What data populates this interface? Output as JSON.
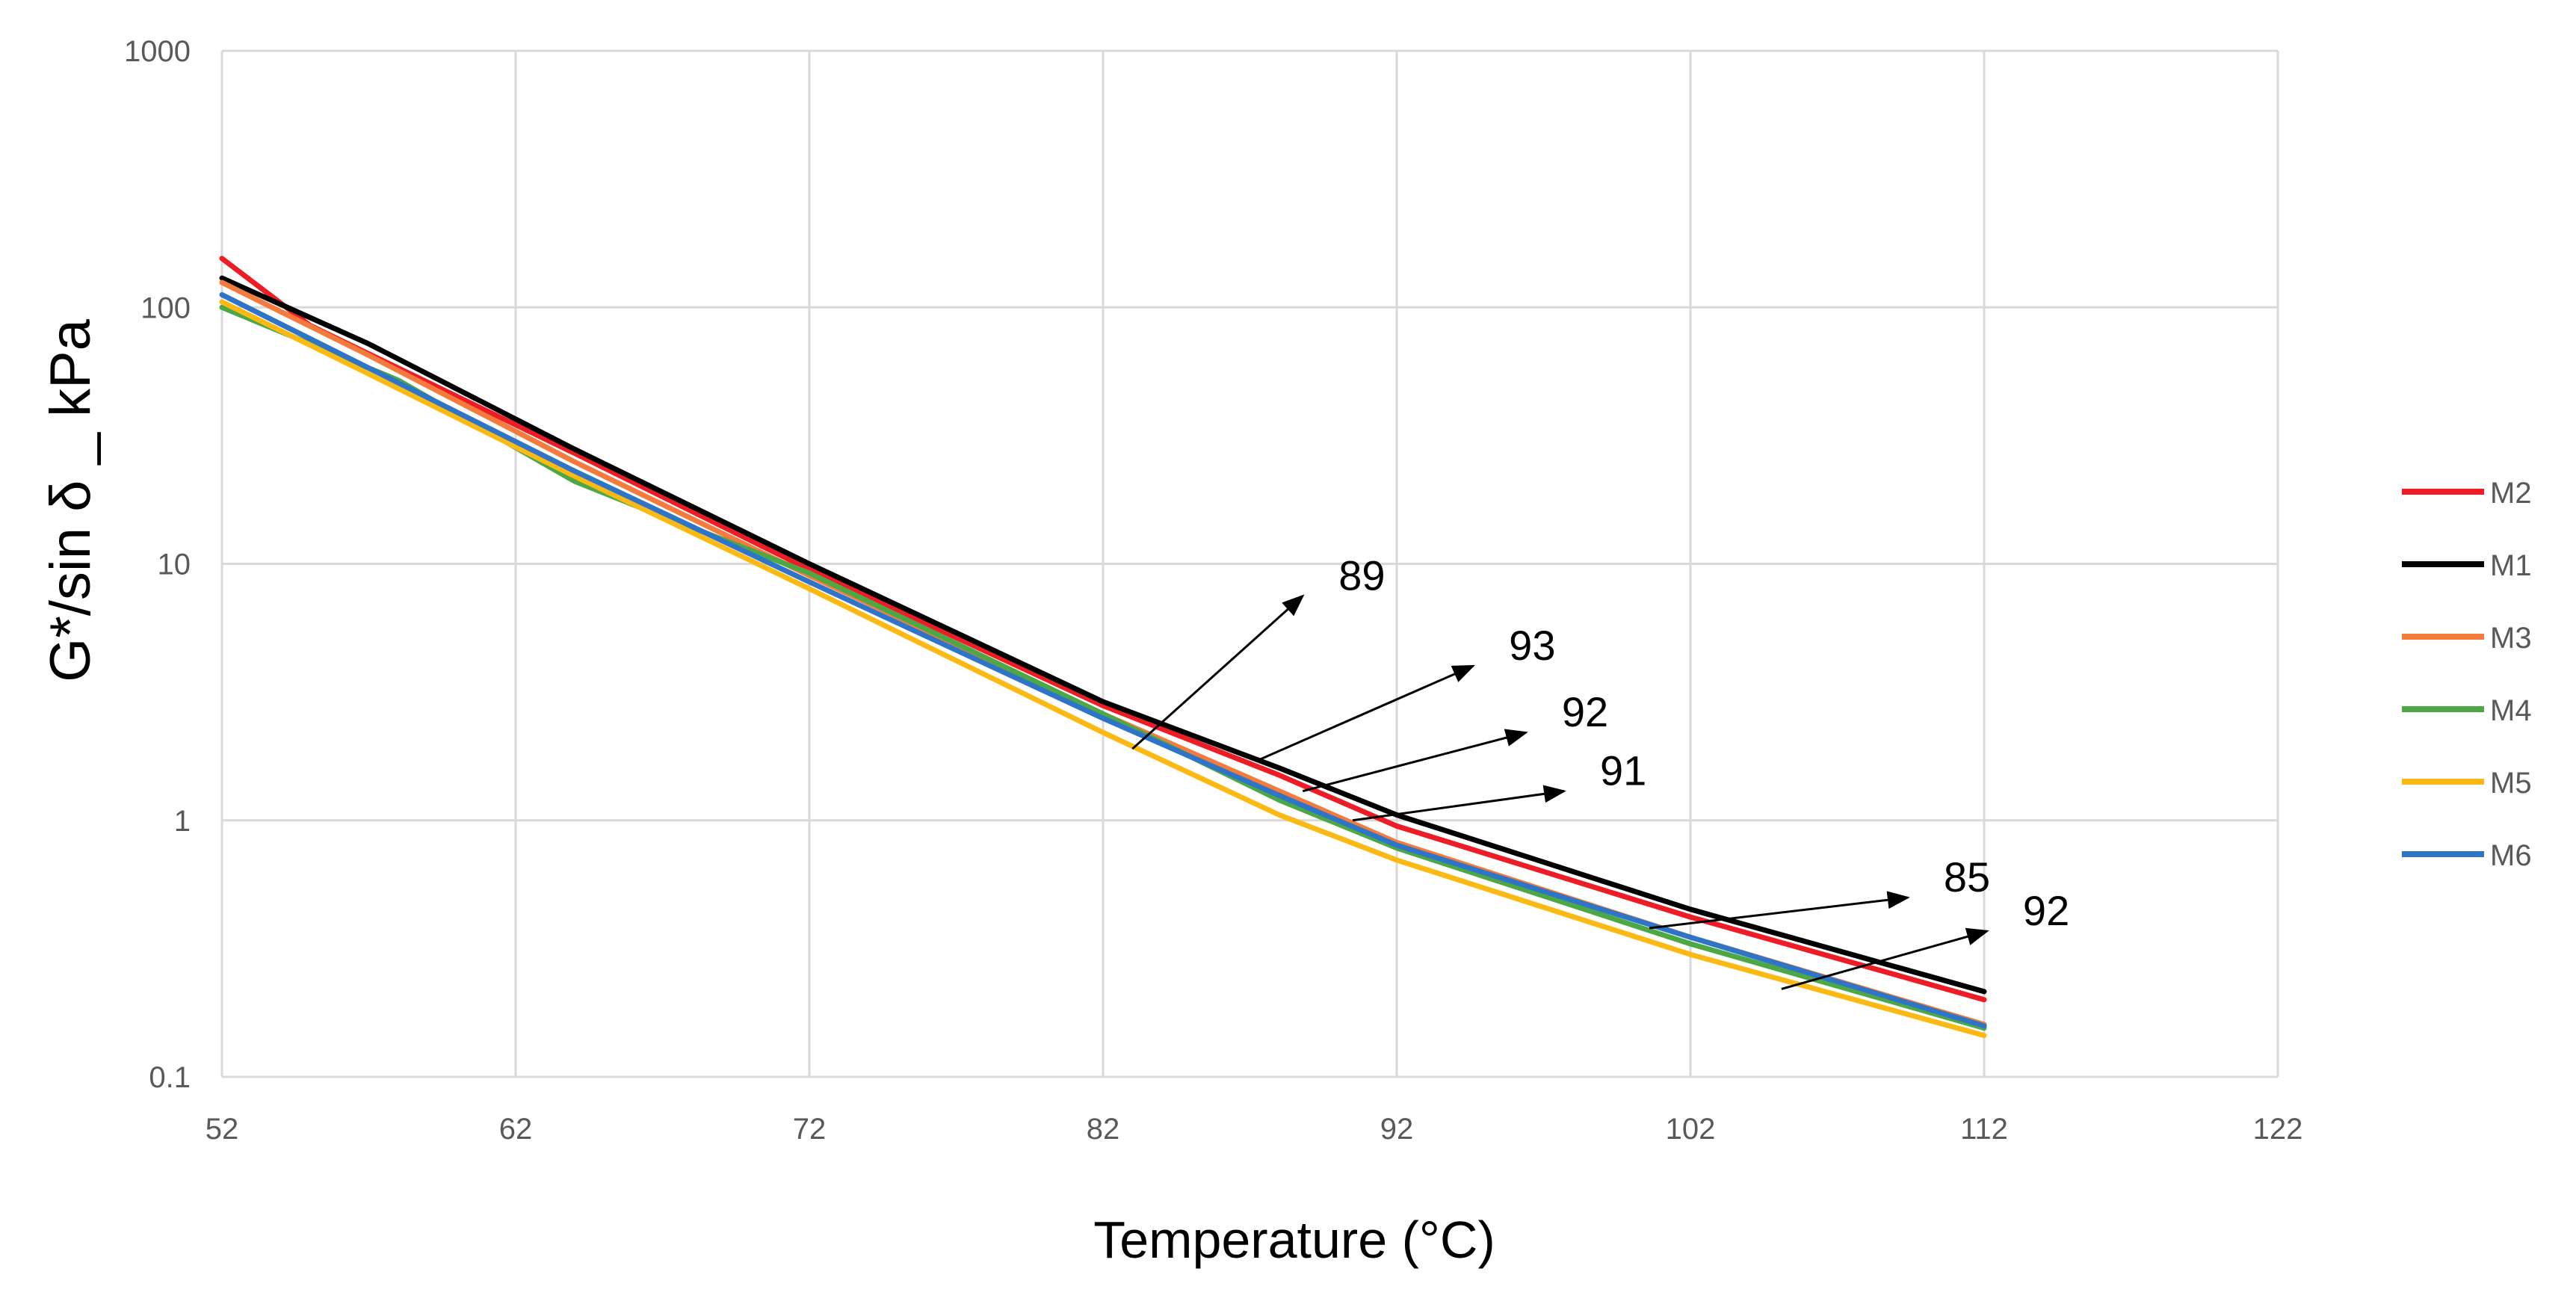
{
  "chart_data": {
    "type": "line",
    "title": "",
    "xlabel": "Temperature (°C)",
    "ylabel": "G*/sin δ _ kPa",
    "y_scale": "log",
    "xlim": [
      52,
      122
    ],
    "ylim": [
      0.1,
      1000
    ],
    "x_ticks": [
      52,
      62,
      72,
      82,
      92,
      102,
      112,
      122
    ],
    "x_tick_labels": [
      "52",
      "62",
      "72",
      "82",
      "92",
      "102",
      "112",
      "122"
    ],
    "y_ticks": [
      0.1,
      1,
      10,
      100,
      1000
    ],
    "y_tick_labels": [
      "0.1",
      "1",
      "10",
      "100",
      "1000"
    ],
    "grid": true,
    "legend_position": "right",
    "series": [
      {
        "name": "M2",
        "color": "#ee1c25",
        "x": [
          52,
          55,
          64,
          72,
          82,
          88,
          92,
          102,
          112
        ],
        "y": [
          155,
          85,
          27,
          9.5,
          2.8,
          1.5,
          0.95,
          0.42,
          0.2
        ]
      },
      {
        "name": "M1",
        "color": "#000000",
        "x": [
          52,
          57,
          64,
          72,
          82,
          88,
          92,
          102,
          112
        ],
        "y": [
          130,
          72,
          28,
          10,
          2.9,
          1.6,
          1.05,
          0.45,
          0.215
        ]
      },
      {
        "name": "M3",
        "color": "#f47b3b",
        "x": [
          52,
          57,
          64,
          72,
          82,
          88,
          92,
          102,
          112
        ],
        "y": [
          125,
          65,
          25,
          9,
          2.6,
          1.3,
          0.82,
          0.35,
          0.16
        ]
      },
      {
        "name": "M4",
        "color": "#4ca845",
        "x": [
          52,
          58,
          64,
          66,
          72,
          82,
          88,
          92,
          102,
          112
        ],
        "y": [
          100,
          52,
          21,
          17,
          9.2,
          2.6,
          1.2,
          0.78,
          0.33,
          0.155
        ]
      },
      {
        "name": "M5",
        "color": "#fdb913",
        "x": [
          52,
          57,
          64,
          72,
          82,
          88,
          92,
          102,
          112
        ],
        "y": [
          105,
          55,
          22,
          8,
          2.2,
          1.05,
          0.7,
          0.3,
          0.145
        ]
      },
      {
        "name": "M6",
        "color": "#2e75c8",
        "x": [
          52,
          57,
          64,
          72,
          82,
          88,
          92,
          102,
          112
        ],
        "y": [
          112,
          58,
          23,
          8.5,
          2.5,
          1.25,
          0.8,
          0.35,
          0.158
        ]
      }
    ],
    "annotations": [
      {
        "text": "89",
        "from": [
          83,
          1.9
        ],
        "to": [
          88.8,
          7.5
        ]
      },
      {
        "text": "93",
        "from": [
          87.2,
          1.7
        ],
        "to": [
          94.6,
          4.0
        ]
      },
      {
        "text": "92",
        "from": [
          88.8,
          1.3
        ],
        "to": [
          96.4,
          2.2
        ]
      },
      {
        "text": "91",
        "from": [
          90.5,
          1.0
        ],
        "to": [
          97.7,
          1.3
        ]
      },
      {
        "text": "85",
        "from": [
          100.6,
          0.38
        ],
        "to": [
          109.4,
          0.5
        ]
      },
      {
        "text": "92",
        "from": [
          105.1,
          0.22
        ],
        "to": [
          112.1,
          0.37
        ]
      }
    ]
  }
}
